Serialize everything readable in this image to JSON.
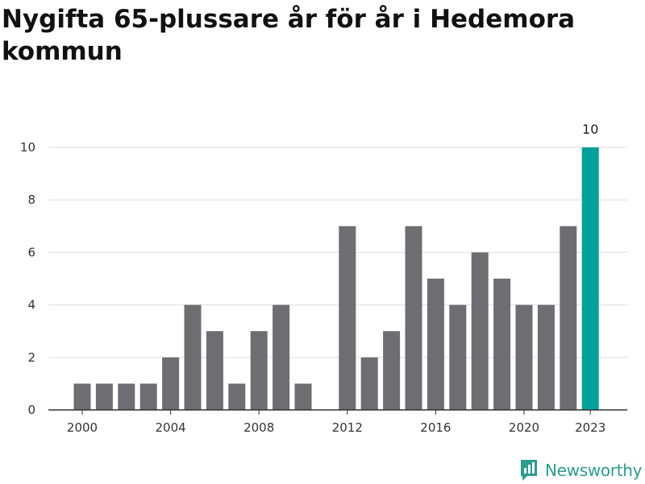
{
  "page": {
    "title": "Nygifta 65-plussare år för år i Hedemora kommun",
    "brand": "Newsworthy"
  },
  "colors": {
    "bar_default": "#6e6d72",
    "bar_highlight": "#00a19a",
    "brand": "#2a9d8f",
    "grid": "#dddddd",
    "axis": "#333333"
  },
  "icons": {
    "brand_logo": "newsworthy-logo-icon"
  },
  "chart_data": {
    "type": "bar",
    "title": "Nygifta 65-plussare år för år i Hedemora kommun",
    "xlabel": "",
    "ylabel": "",
    "categories": [
      2000,
      2001,
      2002,
      2003,
      2004,
      2005,
      2006,
      2007,
      2008,
      2009,
      2010,
      2011,
      2012,
      2013,
      2014,
      2015,
      2016,
      2017,
      2018,
      2019,
      2020,
      2021,
      2022,
      2023
    ],
    "values": [
      1,
      1,
      1,
      1,
      2,
      4,
      3,
      1,
      3,
      4,
      1,
      0,
      7,
      2,
      3,
      7,
      5,
      4,
      6,
      5,
      4,
      4,
      7,
      10
    ],
    "highlight_index": 23,
    "data_labels": [
      {
        "index": 23,
        "text": "10"
      }
    ],
    "ylim": [
      0,
      10
    ],
    "yticks": [
      0,
      2,
      4,
      6,
      8,
      10
    ],
    "xticks": [
      2000,
      2004,
      2008,
      2012,
      2016,
      2020,
      2023
    ],
    "grid": true,
    "legend": "none"
  }
}
